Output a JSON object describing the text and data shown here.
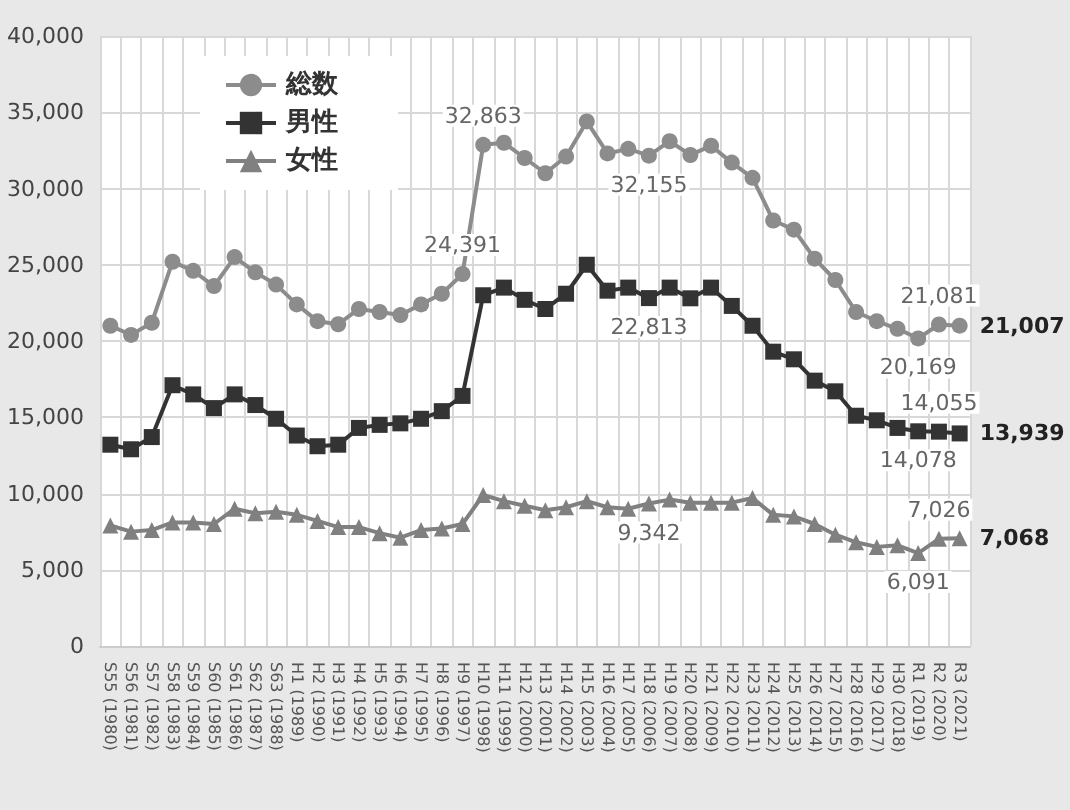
{
  "chart_data": {
    "type": "line",
    "categories": [
      "S55 (1980)",
      "S56 (1981)",
      "S57 (1982)",
      "S58 (1983)",
      "S59 (1984)",
      "S60 (1985)",
      "S61 (1986)",
      "S62 (1987)",
      "S63 (1988)",
      "H1 (1989)",
      "H2 (1990)",
      "H3 (1991)",
      "H4 (1992)",
      "H5 (1993)",
      "H6 (1994)",
      "H7 (1995)",
      "H8 (1996)",
      "H9 (1997)",
      "H10 (1998)",
      "H11 (1999)",
      "H12 (2000)",
      "H13 (2001)",
      "H14 (2002)",
      "H15 (2003)",
      "H16 (2004)",
      "H17 (2005)",
      "H18 (2006)",
      "H19 (2007)",
      "H20 (2008)",
      "H21 (2009)",
      "H22 (2010)",
      "H23 (2011)",
      "H24 (2012)",
      "H25 (2013)",
      "H26 (2014)",
      "H27 (2015)",
      "H28 (2016)",
      "H29 (2017)",
      "H30 (2018)",
      "R1 (2019)",
      "R2 (2020)",
      "R3 (2021)"
    ],
    "series": [
      {
        "name": "総数",
        "color": "#8c8c8c",
        "marker": "circle",
        "values": [
          21000,
          20400,
          21200,
          25200,
          24600,
          23600,
          25500,
          24500,
          23700,
          22400,
          21300,
          21100,
          22100,
          21900,
          21700,
          22400,
          23100,
          24391,
          32863,
          33000,
          32000,
          31000,
          32100,
          34400,
          32300,
          32600,
          32155,
          33100,
          32200,
          32800,
          31700,
          30700,
          27900,
          27300,
          25400,
          24000,
          21900,
          21300,
          20800,
          20169,
          21081,
          21007
        ],
        "value_labels": [
          null,
          null,
          null,
          null,
          null,
          null,
          null,
          null,
          null,
          null,
          null,
          null,
          null,
          null,
          null,
          null,
          null,
          "24,391",
          "32,863",
          null,
          null,
          null,
          null,
          null,
          null,
          null,
          "32,155",
          null,
          null,
          null,
          null,
          null,
          null,
          null,
          null,
          null,
          null,
          null,
          null,
          "20,169",
          "21,081",
          "21,007"
        ]
      },
      {
        "name": "男性",
        "color": "#333333",
        "marker": "square",
        "values": [
          13200,
          12900,
          13700,
          17100,
          16500,
          15600,
          16500,
          15800,
          14900,
          13800,
          13100,
          13200,
          14300,
          14500,
          14600,
          14900,
          15400,
          16400,
          23000,
          23500,
          22700,
          22100,
          23100,
          25000,
          23300,
          23500,
          22813,
          23500,
          22800,
          23500,
          22300,
          21000,
          19300,
          18800,
          17400,
          16700,
          15100,
          14800,
          14300,
          14078,
          14055,
          13939
        ],
        "value_labels": [
          null,
          null,
          null,
          null,
          null,
          null,
          null,
          null,
          null,
          null,
          null,
          null,
          null,
          null,
          null,
          null,
          null,
          null,
          null,
          null,
          null,
          null,
          null,
          null,
          null,
          null,
          "22,813",
          null,
          null,
          null,
          null,
          null,
          null,
          null,
          null,
          null,
          null,
          null,
          null,
          "14,078",
          "14,055",
          "13,939"
        ]
      },
      {
        "name": "女性",
        "color": "#808080",
        "marker": "triangle",
        "values": [
          7900,
          7500,
          7600,
          8100,
          8100,
          8000,
          9000,
          8700,
          8800,
          8600,
          8200,
          7800,
          7800,
          7400,
          7100,
          7600,
          7700,
          8000,
          9900,
          9500,
          9200,
          8900,
          9100,
          9500,
          9100,
          9000,
          9342,
          9600,
          9400,
          9400,
          9400,
          9700,
          8600,
          8500,
          8000,
          7300,
          6800,
          6500,
          6600,
          6091,
          7026,
          7068
        ],
        "value_labels": [
          null,
          null,
          null,
          null,
          null,
          null,
          null,
          null,
          null,
          null,
          null,
          null,
          null,
          null,
          null,
          null,
          null,
          null,
          null,
          null,
          null,
          null,
          null,
          null,
          null,
          null,
          "9,342",
          null,
          null,
          null,
          null,
          null,
          null,
          null,
          null,
          null,
          null,
          null,
          null,
          "6,091",
          "7,026",
          "7,068"
        ]
      }
    ],
    "ylim": [
      0,
      40000
    ],
    "yticks": [
      {
        "value": 0,
        "label": "0"
      },
      {
        "value": 5000,
        "label": "5,000"
      },
      {
        "value": 10000,
        "label": "10,000"
      },
      {
        "value": 15000,
        "label": "15,000"
      },
      {
        "value": 20000,
        "label": "20,000"
      },
      {
        "value": 25000,
        "label": "25,000"
      },
      {
        "value": 30000,
        "label": "30,000"
      },
      {
        "value": 35000,
        "label": "35,000"
      },
      {
        "value": 40000,
        "label": "40,000"
      }
    ],
    "grid": true,
    "legend": "top left",
    "line_style": "solid"
  }
}
